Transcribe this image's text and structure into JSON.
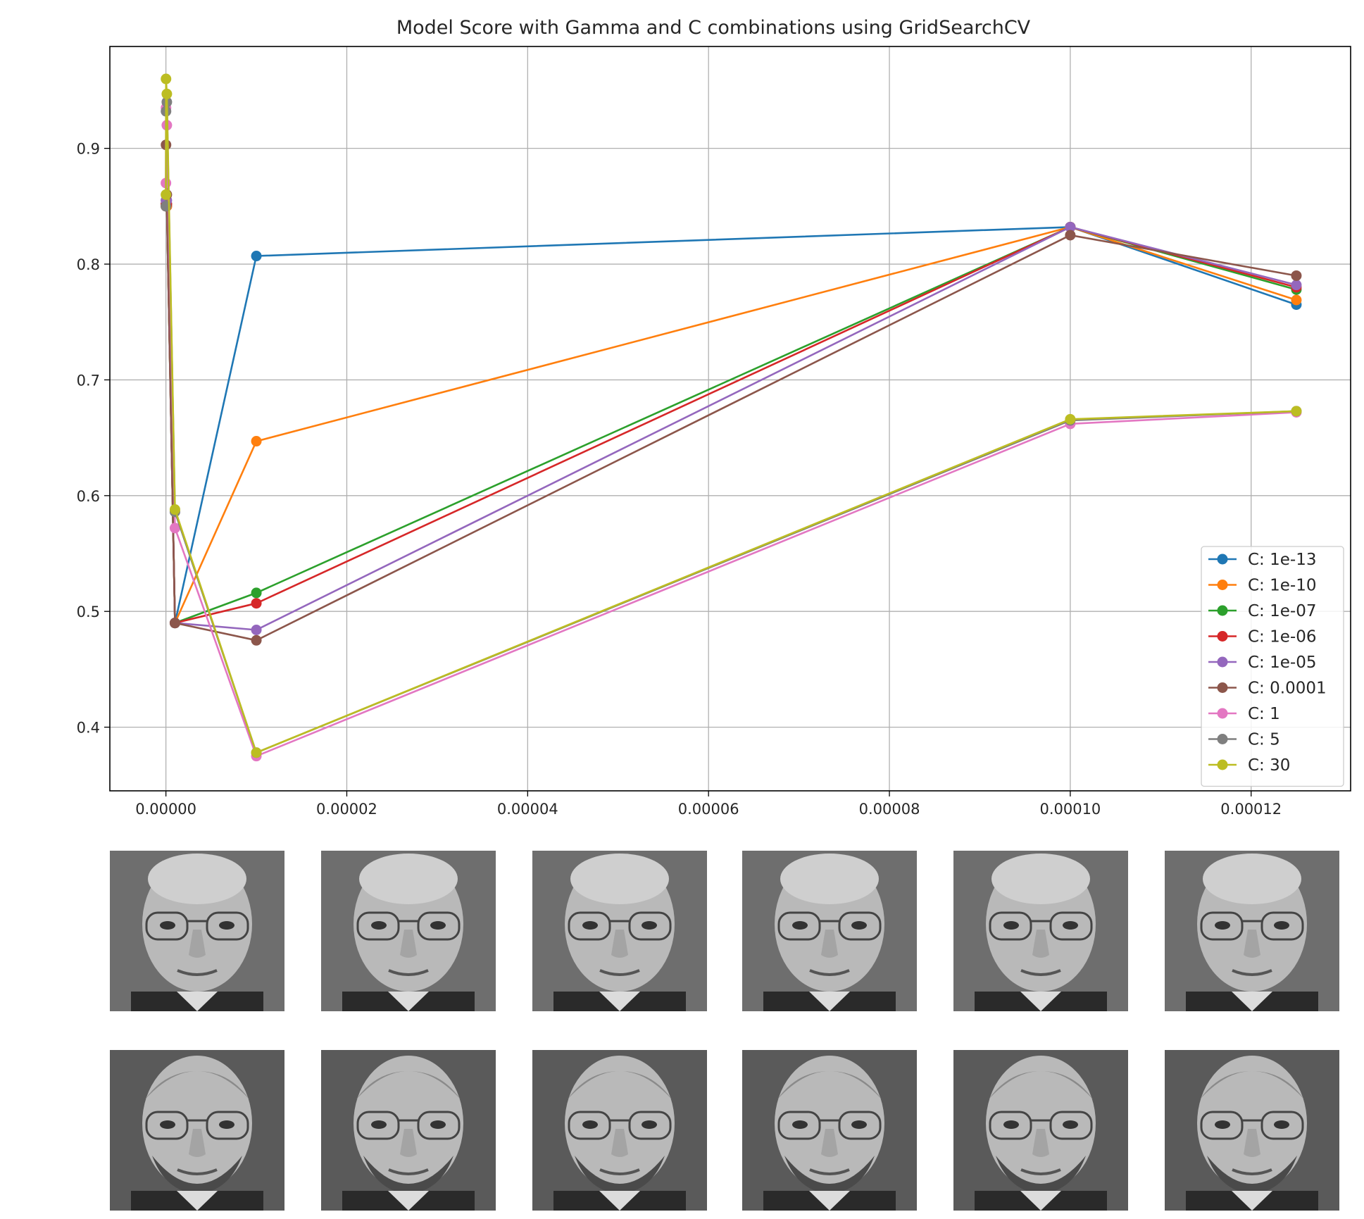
{
  "chart_data": {
    "type": "line",
    "title": "Model Score with Gamma and C combinations using GridSearchCV",
    "xlabel": "",
    "ylabel": "",
    "x": [
      1e-09,
      1e-08,
      1e-07,
      1e-06,
      1e-05,
      0.0001,
      0.000125
    ],
    "xlim": [
      -6.2e-06,
      0.000131
    ],
    "ylim": [
      0.345,
      0.988
    ],
    "xticks": [
      0,
      2e-05,
      4e-05,
      6e-05,
      8e-05,
      0.0001,
      0.00012
    ],
    "xtick_labels": [
      "0.00000",
      "0.00002",
      "0.00004",
      "0.00006",
      "0.00008",
      "0.00010",
      "0.00012"
    ],
    "yticks": [
      0.4,
      0.5,
      0.6,
      0.7,
      0.8,
      0.9
    ],
    "ytick_labels": [
      "0.4",
      "0.5",
      "0.6",
      "0.7",
      "0.8",
      "0.9"
    ],
    "grid": true,
    "legend_position": "lower-right",
    "series": [
      {
        "name": "C: 1e-13",
        "color": "#1f77b4",
        "values": [
          0.85,
          0.85,
          0.85,
          0.49,
          0.807,
          0.832,
          0.765
        ]
      },
      {
        "name": "C: 1e-10",
        "color": "#ff7f0e",
        "values": [
          0.85,
          0.85,
          0.85,
          0.49,
          0.647,
          0.832,
          0.769
        ]
      },
      {
        "name": "C: 1e-07",
        "color": "#2ca02c",
        "values": [
          0.852,
          0.852,
          0.852,
          0.49,
          0.516,
          0.832,
          0.778
        ]
      },
      {
        "name": "C: 1e-06",
        "color": "#d62728",
        "values": [
          0.852,
          0.852,
          0.852,
          0.49,
          0.507,
          0.832,
          0.78
        ]
      },
      {
        "name": "C: 1e-05",
        "color": "#9467bd",
        "values": [
          0.855,
          0.855,
          0.855,
          0.49,
          0.484,
          0.832,
          0.782
        ]
      },
      {
        "name": "C: 0.0001",
        "color": "#8c564b",
        "values": [
          0.85,
          0.903,
          0.86,
          0.49,
          0.475,
          0.825,
          0.79
        ]
      },
      {
        "name": "C: 1",
        "color": "#e377c2",
        "values": [
          0.87,
          0.935,
          0.92,
          0.572,
          0.375,
          0.662,
          0.672
        ]
      },
      {
        "name": "C: 5",
        "color": "#7f7f7f",
        "values": [
          0.85,
          0.932,
          0.94,
          0.586,
          0.378,
          0.665,
          0.673
        ]
      },
      {
        "name": "C: 30",
        "color": "#bcbd22",
        "values": [
          0.86,
          0.96,
          0.947,
          0.588,
          0.378,
          0.666,
          0.673
        ]
      }
    ]
  },
  "figure": {
    "face_rows": 2,
    "face_cols": 6,
    "face_color": "#7a7a7a"
  }
}
